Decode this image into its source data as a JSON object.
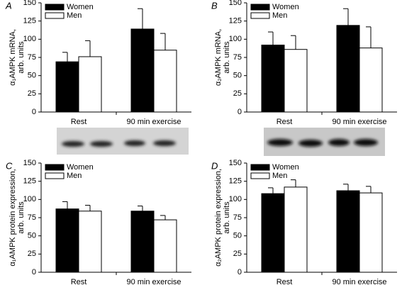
{
  "chart_data": [
    {
      "type": "bar",
      "panel": "A",
      "ylabel": [
        "α₁AMPK mRNA,",
        "arb. units"
      ],
      "categories": [
        "Rest",
        "90 min exercise"
      ],
      "series": [
        {
          "name": "Women",
          "color": "#000000",
          "values": [
            69,
            114
          ],
          "errors": [
            13,
            28
          ]
        },
        {
          "name": "Men",
          "color": "#ffffff",
          "values": [
            76,
            85
          ],
          "errors": [
            22,
            23
          ]
        }
      ],
      "ylim": [
        0,
        150
      ],
      "yticks": [
        0,
        25,
        50,
        75,
        100,
        125,
        150
      ]
    },
    {
      "type": "bar",
      "panel": "B",
      "ylabel": [
        "α₂AMPK mRNA,",
        "arb. units"
      ],
      "categories": [
        "Rest",
        "90 min exercise"
      ],
      "series": [
        {
          "name": "Women",
          "color": "#000000",
          "values": [
            92,
            119
          ],
          "errors": [
            18,
            23
          ]
        },
        {
          "name": "Men",
          "color": "#ffffff",
          "values": [
            86,
            88
          ],
          "errors": [
            19,
            29
          ]
        }
      ],
      "ylim": [
        0,
        150
      ],
      "yticks": [
        0,
        25,
        50,
        75,
        100,
        125,
        150
      ]
    },
    {
      "type": "bar",
      "panel": "C",
      "ylabel": [
        "α₁AMPK protein expression,",
        "arb. units"
      ],
      "categories": [
        "Rest",
        "90 min exercise"
      ],
      "series": [
        {
          "name": "Women",
          "color": "#000000",
          "values": [
            87,
            84
          ],
          "errors": [
            10,
            7
          ]
        },
        {
          "name": "Men",
          "color": "#ffffff",
          "values": [
            84,
            72
          ],
          "errors": [
            8,
            6
          ]
        }
      ],
      "ylim": [
        0,
        150
      ],
      "yticks": [
        0,
        25,
        50,
        75,
        100,
        125,
        150
      ]
    },
    {
      "type": "bar",
      "panel": "D",
      "ylabel": [
        "α₂AMPK protein expression,",
        "arb. units"
      ],
      "categories": [
        "Rest",
        "90 min exercise"
      ],
      "series": [
        {
          "name": "Women",
          "color": "#000000",
          "values": [
            108,
            112
          ],
          "errors": [
            8,
            9
          ]
        },
        {
          "name": "Men",
          "color": "#ffffff",
          "values": [
            117,
            109
          ],
          "errors": [
            10,
            9
          ]
        }
      ],
      "ylim": [
        0,
        150
      ],
      "yticks": [
        0,
        25,
        50,
        75,
        100,
        125,
        150
      ]
    }
  ]
}
